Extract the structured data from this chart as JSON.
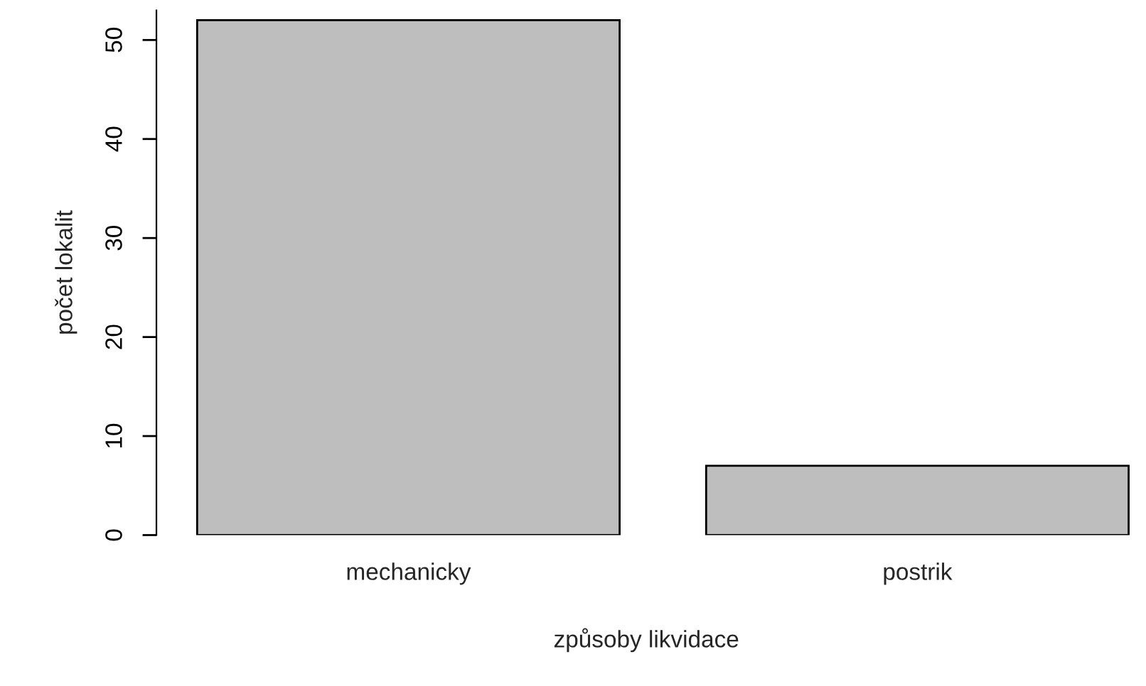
{
  "chart_data": {
    "type": "bar",
    "xlabel": "způsoby likvidace",
    "ylabel": "počet lokalit",
    "categories": [
      "mechanicky",
      "postrik"
    ],
    "values": [
      52,
      7
    ],
    "color": "#bebebe",
    "ylim": [
      0,
      53
    ],
    "yticks": [
      0,
      10,
      20,
      30,
      40,
      50
    ],
    "grid": false,
    "legend": false
  }
}
